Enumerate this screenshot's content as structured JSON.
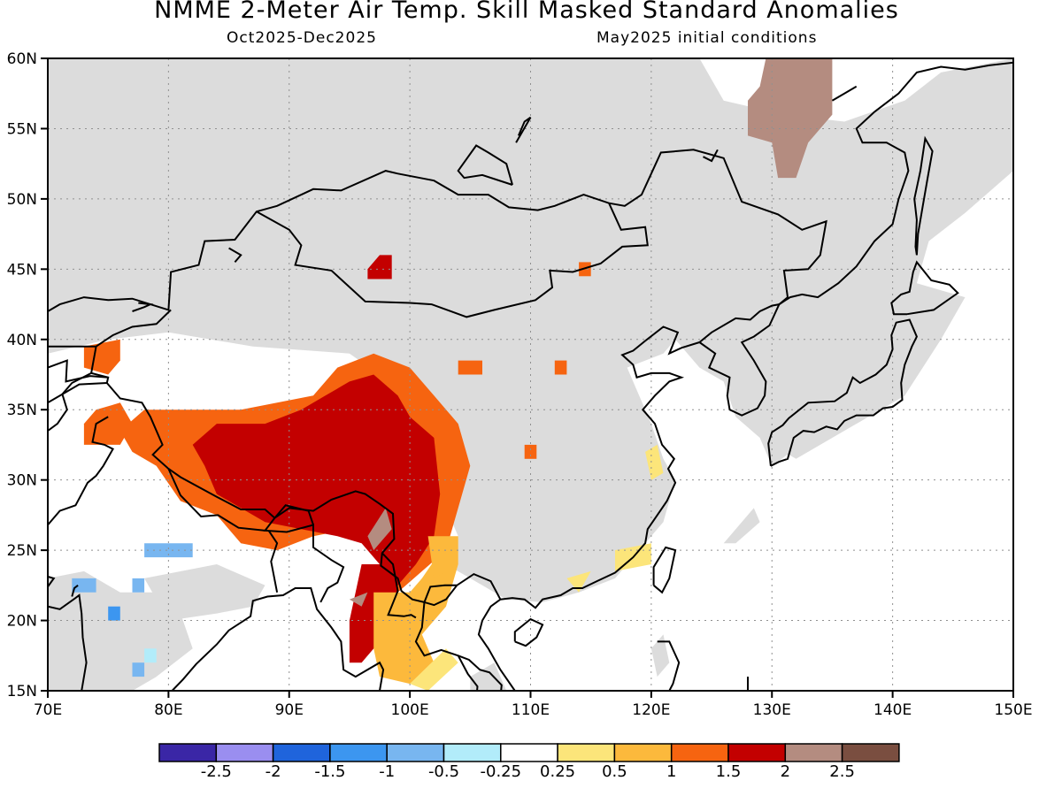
{
  "title": "NMME 2-Meter Air Temp. Skill Masked Standard Anomalies",
  "subtitle_left": "Oct2025-Dec2025",
  "subtitle_right": "May2025 initial conditions",
  "lat_ticks": [
    "15N",
    "20N",
    "25N",
    "30N",
    "35N",
    "40N",
    "45N",
    "50N",
    "55N",
    "60N"
  ],
  "lon_ticks": [
    "70E",
    "80E",
    "90E",
    "100E",
    "110E",
    "120E",
    "130E",
    "140E",
    "150E"
  ],
  "colorbar": {
    "colors": [
      "#3a26a6",
      "#9a8ef0",
      "#1f64dc",
      "#3c96f0",
      "#78b6f0",
      "#b2ecfa",
      "#ffffff",
      "#fce57a",
      "#fcb93c",
      "#f66410",
      "#c30000",
      "#b48c80",
      "#7a4e40"
    ],
    "labels": [
      "-2.5",
      "-2",
      "-1.5",
      "-1",
      "-0.5",
      "-0.25",
      "0.25",
      "0.5",
      "1",
      "1.5",
      "2",
      "2.5"
    ]
  },
  "chart_data": {
    "type": "heatmap",
    "title": "NMME 2-Meter Air Temp. Skill Masked Standard Anomalies",
    "xlim": [
      70,
      150
    ],
    "ylim": [
      15,
      60
    ],
    "mask_color": "#dcdcdc",
    "mask_meaning": "no skill (masked)",
    "anomaly_regions": [
      {
        "name": "tibetan-plateau-core",
        "category": "1.5 to 2",
        "color": "#c30000",
        "approx_lon": [
          84,
          102
        ],
        "approx_lat": [
          25,
          35
        ]
      },
      {
        "name": "tibetan-plateau-rim",
        "category": "1 to 1.5",
        "color": "#f66410",
        "approx_lon": [
          75,
          105
        ],
        "approx_lat": [
          23,
          39
        ]
      },
      {
        "name": "indochina-west",
        "category": "1.5 to 2",
        "color": "#c30000",
        "approx_lon": [
          95,
          100
        ],
        "approx_lat": [
          17,
          25
        ]
      },
      {
        "name": "indochina-central",
        "category": "0.5 to 1",
        "color": "#fcb93c",
        "approx_lon": [
          97,
          104
        ],
        "approx_lat": [
          16,
          24
        ]
      },
      {
        "name": "northeast-siberia",
        "category": "2 to 2.5",
        "color": "#b48c80",
        "approx_lon": [
          127,
          136
        ],
        "approx_lat": [
          52,
          60
        ]
      },
      {
        "name": "mongolia-west",
        "category": "1.5 to 2",
        "color": "#c30000",
        "approx_lon": [
          96,
          99
        ],
        "approx_lat": [
          44,
          46
        ]
      },
      {
        "name": "india-northwest",
        "category": "-1 to -0.5",
        "color": "#78b6f0",
        "approx_lon": [
          72,
          82
        ],
        "approx_lat": [
          19,
          25
        ]
      },
      {
        "name": "east-china-coast",
        "category": "0.25 to 0.5",
        "color": "#fce57a",
        "approx_lon": [
          115,
          121
        ],
        "approx_lat": [
          22,
          32
        ]
      }
    ]
  }
}
